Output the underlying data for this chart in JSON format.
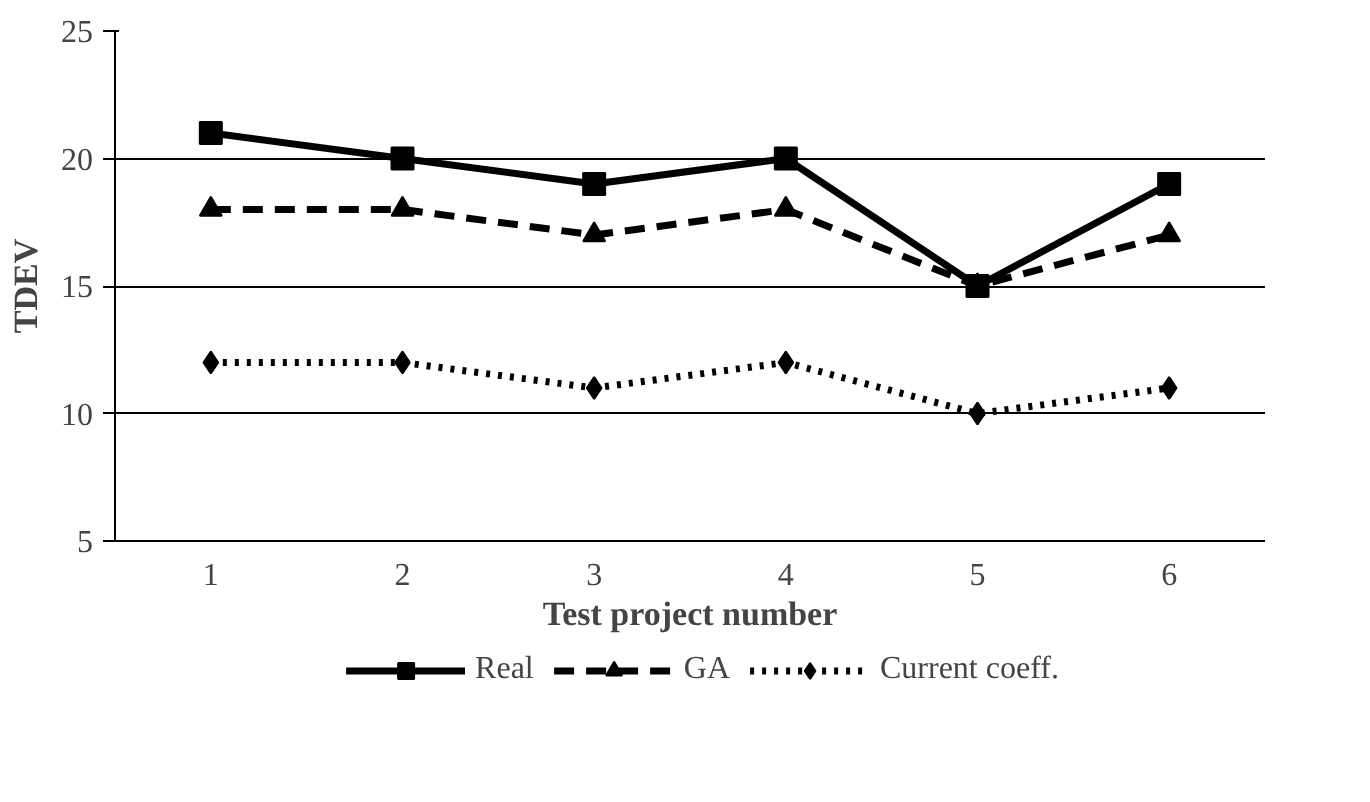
{
  "chart_data": {
    "type": "line",
    "xlabel": "Test project number",
    "ylabel": "TDEV",
    "categories": [
      "1",
      "2",
      "3",
      "4",
      "5",
      "6"
    ],
    "series": [
      {
        "name": "Real",
        "color": "#000000",
        "marker": "square",
        "line_style": "solid",
        "values": [
          21,
          20,
          19,
          20,
          15,
          19
        ]
      },
      {
        "name": "GA",
        "color": "#000000",
        "marker": "triangle",
        "line_style": "dashed",
        "values": [
          18,
          18,
          17,
          18,
          15,
          17
        ]
      },
      {
        "name": "Current coeff.",
        "color": "#000000",
        "marker": "diamond",
        "line_style": "dotted",
        "values": [
          12,
          12,
          11,
          12,
          10,
          11
        ]
      }
    ],
    "ylim": [
      5,
      25
    ],
    "yticks": [
      5,
      10,
      15,
      20,
      25
    ],
    "grid": "y",
    "legend": "bottom"
  }
}
